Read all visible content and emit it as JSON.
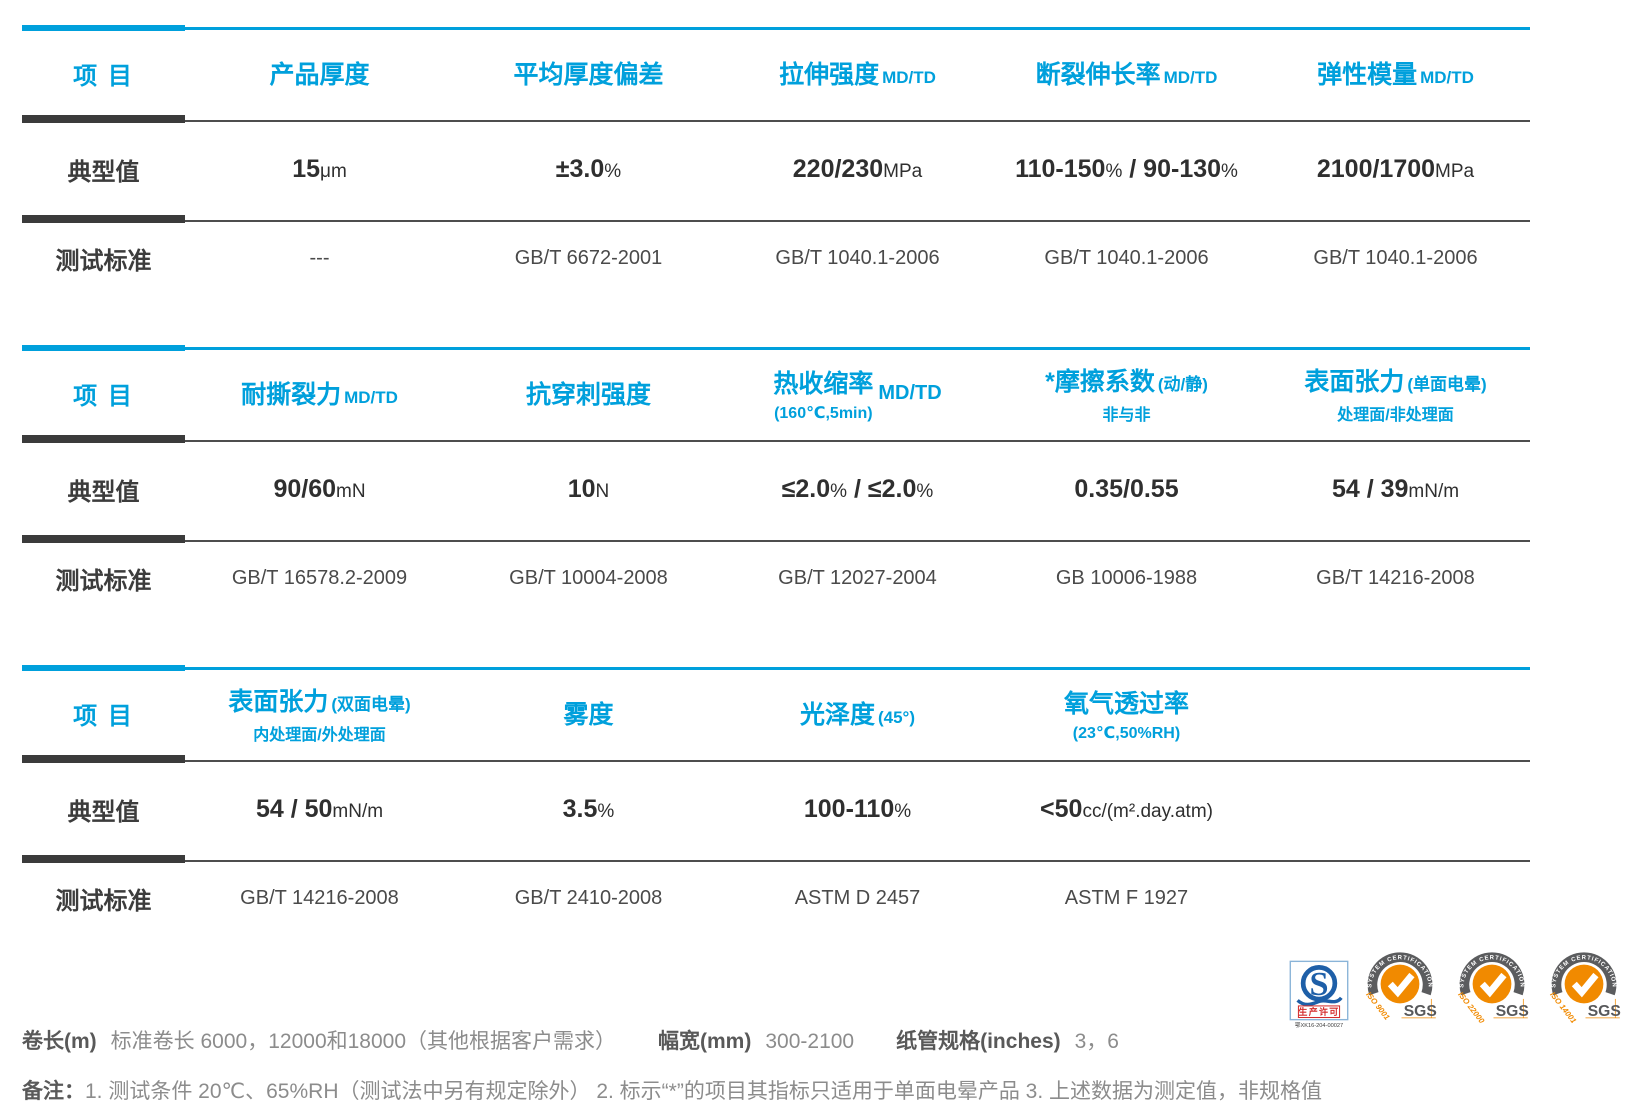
{
  "accent_color": "#00a0dc",
  "dark_bar_color": "#3b3b3b",
  "tables": [
    {
      "item_label": "项 目",
      "typical_label": "典型值",
      "standard_label": "测试标准",
      "columns": [
        {
          "main": "产品厚度",
          "value": [
            {
              "t": "15"
            },
            {
              "t": "μm",
              "u": true
            }
          ],
          "std": "---"
        },
        {
          "main": "平均厚度偏差",
          "value": [
            {
              "t": "±3.0"
            },
            {
              "t": "%",
              "u": true
            }
          ],
          "std": "GB/T 6672-2001"
        },
        {
          "main": "拉伸强度",
          "small": "MD/TD",
          "value": [
            {
              "t": "220/230"
            },
            {
              "t": "MPa",
              "u": true
            }
          ],
          "std": "GB/T 1040.1-2006"
        },
        {
          "main": "断裂伸长率",
          "small": "MD/TD",
          "value": [
            {
              "t": "110-150"
            },
            {
              "t": "%",
              "u": true
            },
            {
              "t": " / 90-130"
            },
            {
              "t": "%",
              "u": true
            }
          ],
          "std": "GB/T 1040.1-2006"
        },
        {
          "main": "弹性模量",
          "small": "MD/TD",
          "value": [
            {
              "t": "2100/1700"
            },
            {
              "t": "MPa",
              "u": true
            }
          ],
          "std": "GB/T 1040.1-2006"
        }
      ]
    },
    {
      "item_label": "项 目",
      "typical_label": "典型值",
      "standard_label": "测试标准",
      "columns": [
        {
          "main": "耐撕裂力",
          "small": "MD/TD",
          "value": [
            {
              "t": "90/60"
            },
            {
              "t": "mN",
              "u": true
            }
          ],
          "std": "GB/T 16578.2-2009"
        },
        {
          "main": "抗穿刺强度",
          "value": [
            {
              "t": "10"
            },
            {
              "t": "N",
              "u": true
            }
          ],
          "std": "GB/T 10004-2008"
        },
        {
          "main": "热收缩率",
          "sub": "(160℃,5min)",
          "side": "MD/TD",
          "value": [
            {
              "t": "≤2.0"
            },
            {
              "t": "%",
              "u": true
            },
            {
              "t": " / ≤2.0"
            },
            {
              "t": "%",
              "u": true
            }
          ],
          "std": "GB/T 12027-2004"
        },
        {
          "main": "*摩擦系数",
          "small": "(动/静)",
          "sub": "非与非",
          "value": [
            {
              "t": "0.35/0.55"
            }
          ],
          "std": "GB 10006-1988"
        },
        {
          "main": "表面张力",
          "small": "(单面电晕)",
          "sub": "处理面/非处理面",
          "value": [
            {
              "t": "54 / 39"
            },
            {
              "t": "mN/m",
              "u": true
            }
          ],
          "std": "GB/T 14216-2008"
        }
      ]
    },
    {
      "item_label": "项 目",
      "typical_label": "典型值",
      "standard_label": "测试标准",
      "columns": [
        {
          "main": "表面张力",
          "small": "(双面电晕)",
          "sub": "内处理面/外处理面",
          "value": [
            {
              "t": "54 / 50"
            },
            {
              "t": "mN/m",
              "u": true
            }
          ],
          "std": "GB/T 14216-2008"
        },
        {
          "main": "雾度",
          "value": [
            {
              "t": "3.5"
            },
            {
              "t": "%",
              "u": true
            }
          ],
          "std": "GB/T 2410-2008"
        },
        {
          "main": "光泽度",
          "small": "(45°)",
          "value": [
            {
              "t": "100-110"
            },
            {
              "t": "%",
              "u": true
            }
          ],
          "std": "ASTM D 2457"
        },
        {
          "main": "氧气透过率",
          "sub": "(23℃,50%RH)",
          "value": [
            {
              "t": "<50"
            },
            {
              "t": "cc/(m².day.atm)",
              "u": true
            }
          ],
          "std": "ASTM F 1927"
        }
      ]
    }
  ],
  "footer": {
    "roll_length_label": "卷长(m)",
    "roll_length_value": "标准卷长 6000，12000和18000（其他根据客户需求）",
    "width_label": "幅宽(mm)",
    "width_value": "300-2100",
    "core_label": "纸管规格(inches)",
    "core_value": "3，6",
    "remark_label": "备注：",
    "remark_text": "1. 测试条件 20℃、65%RH（测试法中另有规定除外） 2. 标示“*”的项目其指标只适用于单面电晕产品   3. 上述数据为测定值，非规格值"
  },
  "logos": {
    "qs": {
      "mark_letter": "S",
      "license_text": "生产许可",
      "license_no": "鄂XK16-204-00027"
    },
    "sgs": [
      {
        "arc_text": "SYSTEM CERTIFICATION",
        "iso": "ISO 9001",
        "brand": "SGS"
      },
      {
        "arc_text": "SYSTEM CERTIFICATION",
        "iso": "ISO 22000",
        "brand": "SGS"
      },
      {
        "arc_text": "SYSTEM CERTIFICATION",
        "iso": "ISO 14001",
        "brand": "SGS"
      }
    ]
  }
}
